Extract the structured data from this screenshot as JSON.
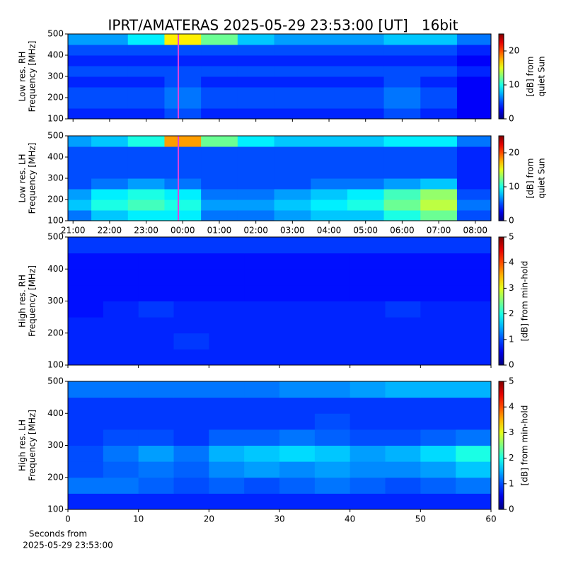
{
  "figure": {
    "title": "IPRT/AMATERAS 2025-05-29 23:53:00 [UT]   16bit"
  },
  "chart_data": [
    {
      "type": "heatmap",
      "ylabel": [
        "Low res. RH",
        "Frequency [MHz]"
      ],
      "xlim": [
        20.86,
        32.43
      ],
      "xticks": [
        {
          "value": 21,
          "label": "21:00"
        },
        {
          "value": 22,
          "label": "22:00"
        },
        {
          "value": 23,
          "label": "23:00"
        },
        {
          "value": 24,
          "label": "00:00"
        },
        {
          "value": 25,
          "label": "01:00"
        },
        {
          "value": 26,
          "label": "02:00"
        },
        {
          "value": 27,
          "label": "03:00"
        },
        {
          "value": 28,
          "label": "04:00"
        },
        {
          "value": 29,
          "label": "05:00"
        },
        {
          "value": 30,
          "label": "06:00"
        },
        {
          "value": 31,
          "label": "07:00"
        },
        {
          "value": 32,
          "label": "08:00"
        }
      ],
      "show_xticklabels": false,
      "ylim": [
        100,
        500
      ],
      "yticks": [
        100,
        200,
        300,
        400,
        500
      ],
      "xbins": [
        20.86,
        21.5,
        22.5,
        23.5,
        24.5,
        25.5,
        26.5,
        27.5,
        28.5,
        29.5,
        30.5,
        31.5,
        32.43
      ],
      "ybins": [
        100,
        150,
        200,
        250,
        300,
        350,
        400,
        450,
        500
      ],
      "z": [
        [
          4,
          4,
          4,
          5,
          4,
          4,
          4,
          4,
          4,
          5,
          4,
          3
        ],
        [
          5,
          5,
          5,
          6,
          5,
          5,
          5,
          5,
          5,
          6,
          5,
          3
        ],
        [
          5,
          5,
          5,
          6,
          5,
          5,
          5,
          5,
          5,
          6,
          5,
          3
        ],
        [
          4,
          4,
          4,
          5,
          4,
          4,
          4,
          4,
          4,
          5,
          4,
          3
        ],
        [
          5,
          5,
          5,
          5,
          5,
          5,
          5,
          5,
          5,
          5,
          5,
          4
        ],
        [
          4,
          4,
          4,
          4,
          4,
          4,
          4,
          4,
          4,
          4,
          4,
          3
        ],
        [
          5,
          5,
          5,
          5,
          5,
          5,
          5,
          5,
          5,
          5,
          5,
          4
        ],
        [
          7,
          7,
          9,
          16,
          12,
          8,
          7,
          7,
          7,
          8,
          8,
          6
        ]
      ],
      "marker": {
        "x": 23.88,
        "color": "#e040e0"
      },
      "clim": [
        0,
        25
      ],
      "cticks": [
        0,
        10,
        20
      ],
      "clabel": [
        "[dB] from",
        "quiet Sun"
      ]
    },
    {
      "type": "heatmap",
      "ylabel": [
        "Low res. LH",
        "Frequency [MHz]"
      ],
      "xlim": [
        20.86,
        32.43
      ],
      "xticks": [
        {
          "value": 21,
          "label": "21:00"
        },
        {
          "value": 22,
          "label": "22:00"
        },
        {
          "value": 23,
          "label": "23:00"
        },
        {
          "value": 24,
          "label": "00:00"
        },
        {
          "value": 25,
          "label": "01:00"
        },
        {
          "value": 26,
          "label": "02:00"
        },
        {
          "value": 27,
          "label": "03:00"
        },
        {
          "value": 28,
          "label": "04:00"
        },
        {
          "value": 29,
          "label": "05:00"
        },
        {
          "value": 30,
          "label": "06:00"
        },
        {
          "value": 31,
          "label": "07:00"
        },
        {
          "value": 32,
          "label": "08:00"
        }
      ],
      "show_xticklabels": true,
      "ylim": [
        100,
        500
      ],
      "yticks": [
        100,
        200,
        300,
        400,
        500
      ],
      "xbins": [
        20.86,
        21.5,
        22.5,
        23.5,
        24.5,
        25.5,
        26.5,
        27.5,
        28.5,
        29.5,
        30.5,
        31.5,
        32.43
      ],
      "ybins": [
        100,
        150,
        200,
        250,
        300,
        350,
        400,
        450,
        500
      ],
      "z": [
        [
          6,
          8,
          9,
          9,
          6,
          6,
          7,
          8,
          8,
          10,
          12,
          5
        ],
        [
          8,
          10,
          11,
          10,
          7,
          7,
          8,
          9,
          10,
          12,
          14,
          6
        ],
        [
          7,
          9,
          10,
          9,
          6,
          6,
          7,
          8,
          9,
          11,
          13,
          5
        ],
        [
          5,
          6,
          7,
          6,
          5,
          5,
          5,
          6,
          6,
          7,
          8,
          4
        ],
        [
          5,
          5,
          5,
          5,
          5,
          5,
          5,
          5,
          5,
          5,
          5,
          4
        ],
        [
          5,
          5,
          5,
          5,
          5,
          5,
          5,
          5,
          5,
          5,
          5,
          4
        ],
        [
          5,
          5,
          5,
          5,
          5,
          5,
          5,
          5,
          5,
          5,
          5,
          4
        ],
        [
          7,
          8,
          10,
          18,
          12,
          9,
          8,
          8,
          8,
          9,
          9,
          6
        ]
      ],
      "marker": {
        "x": 23.88,
        "color": "#e040e0"
      },
      "clim": [
        0,
        25
      ],
      "cticks": [
        0,
        10,
        20
      ],
      "clabel": [
        "[dB] from",
        "quiet Sun"
      ]
    },
    {
      "type": "heatmap",
      "ylabel": [
        "High res. RH",
        "Frequency [MHz]"
      ],
      "xlim": [
        0,
        60
      ],
      "xticks": [
        0,
        10,
        20,
        30,
        40,
        50,
        60
      ],
      "show_xticklabels": false,
      "ylim": [
        100,
        500
      ],
      "yticks": [
        100,
        200,
        300,
        400,
        500
      ],
      "xbins": [
        0,
        5,
        10,
        15,
        20,
        25,
        30,
        35,
        40,
        45,
        50,
        55,
        60
      ],
      "ybins": [
        100,
        150,
        200,
        250,
        300,
        350,
        400,
        450,
        500
      ],
      "z": [
        [
          0.8,
          0.8,
          0.8,
          0.8,
          0.8,
          0.8,
          0.8,
          0.8,
          0.8,
          0.8,
          0.8,
          0.8
        ],
        [
          0.8,
          0.8,
          0.8,
          0.9,
          0.8,
          0.8,
          0.8,
          0.8,
          0.8,
          0.8,
          0.8,
          0.8
        ],
        [
          0.8,
          0.8,
          0.8,
          0.8,
          0.8,
          0.8,
          0.8,
          0.8,
          0.8,
          0.8,
          0.8,
          0.8
        ],
        [
          0.7,
          0.8,
          0.9,
          0.8,
          0.8,
          0.8,
          0.8,
          0.8,
          0.8,
          0.9,
          0.8,
          0.8
        ],
        [
          0.7,
          0.7,
          0.7,
          0.7,
          0.7,
          0.7,
          0.7,
          0.7,
          0.7,
          0.7,
          0.7,
          0.7
        ],
        [
          0.7,
          0.7,
          0.7,
          0.7,
          0.7,
          0.7,
          0.7,
          0.7,
          0.7,
          0.7,
          0.7,
          0.7
        ],
        [
          0.7,
          0.7,
          0.7,
          0.7,
          0.7,
          0.7,
          0.7,
          0.7,
          0.7,
          0.7,
          0.7,
          0.7
        ],
        [
          0.9,
          0.9,
          0.9,
          0.9,
          0.9,
          0.9,
          0.9,
          0.9,
          0.9,
          0.9,
          0.9,
          0.9
        ]
      ],
      "clim": [
        0,
        5
      ],
      "cticks": [
        0,
        1,
        2,
        3,
        4,
        5
      ],
      "clabel": [
        "[dB] from min-hold"
      ]
    },
    {
      "type": "heatmap",
      "ylabel": [
        "High res. LH",
        "Frequency [MHz]"
      ],
      "xlim": [
        0,
        60
      ],
      "xticks": [
        0,
        10,
        20,
        30,
        40,
        50,
        60
      ],
      "show_xticklabels": true,
      "xlabel": [
        "Seconds from",
        "2025-05-29 23:53:00"
      ],
      "ylim": [
        100,
        500
      ],
      "yticks": [
        100,
        200,
        300,
        400,
        500
      ],
      "xbins": [
        0,
        5,
        10,
        15,
        20,
        25,
        30,
        35,
        40,
        45,
        50,
        55,
        60
      ],
      "ybins": [
        100,
        150,
        200,
        250,
        300,
        350,
        400,
        450,
        500
      ],
      "z": [
        [
          0.8,
          0.8,
          0.8,
          0.8,
          0.8,
          0.8,
          0.8,
          0.8,
          0.8,
          0.8,
          0.8,
          0.8
        ],
        [
          1.2,
          1.2,
          1.1,
          1.0,
          1.1,
          1.0,
          1.1,
          1.2,
          1.1,
          1.0,
          1.1,
          1.2
        ],
        [
          1.0,
          1.1,
          1.2,
          1.1,
          1.3,
          1.4,
          1.3,
          1.4,
          1.3,
          1.3,
          1.4,
          1.6
        ],
        [
          1.0,
          1.2,
          1.4,
          1.2,
          1.5,
          1.6,
          1.7,
          1.6,
          1.4,
          1.5,
          1.7,
          2.0
        ],
        [
          0.9,
          1.0,
          1.0,
          0.9,
          1.1,
          1.1,
          1.2,
          1.1,
          1.0,
          1.0,
          1.1,
          1.2
        ],
        [
          0.9,
          0.9,
          0.9,
          0.9,
          0.9,
          0.9,
          0.9,
          1.0,
          0.9,
          0.9,
          0.9,
          0.9
        ],
        [
          0.9,
          0.9,
          0.9,
          0.9,
          0.9,
          0.9,
          0.9,
          0.9,
          0.9,
          0.9,
          0.9,
          0.9
        ],
        [
          1.2,
          1.2,
          1.2,
          1.2,
          1.2,
          1.2,
          1.3,
          1.3,
          1.4,
          1.5,
          1.5,
          1.5
        ]
      ],
      "clim": [
        0,
        5
      ],
      "cticks": [
        0,
        1,
        2,
        3,
        4,
        5
      ],
      "clabel": [
        "[dB] from min-hold"
      ]
    }
  ]
}
